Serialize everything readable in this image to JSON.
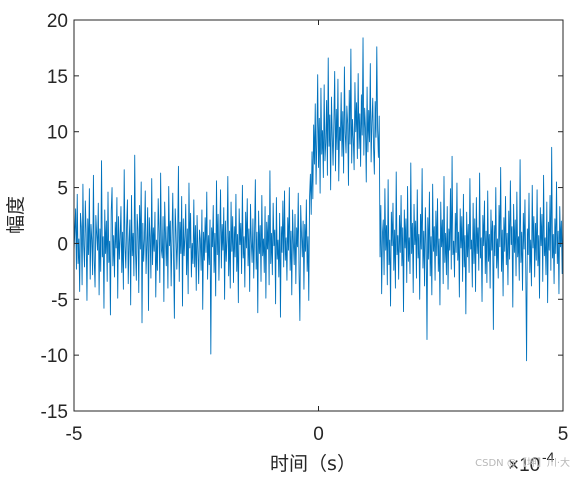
{
  "chart_data": {
    "type": "line",
    "title": "",
    "xlabel": "时间（s）",
    "ylabel": "幅度",
    "xlim": [
      -0.0005,
      0.0005
    ],
    "ylim": [
      -15,
      20
    ],
    "x_ticks": [
      -5,
      0,
      5
    ],
    "y_ticks": [
      -15,
      -10,
      -5,
      0,
      5,
      10,
      15,
      20
    ],
    "x_exponent_label": "×10",
    "x_exponent_power": "-4",
    "grid": false,
    "line_color": "#0072BD",
    "x_start": -0.0005,
    "x_end": 0.0005,
    "values": [
      -0.7,
      1.1,
      3.1,
      -2.3,
      4.4,
      -1.8,
      0.4,
      -4.3,
      2.7,
      1.5,
      -3.7,
      5.3,
      -0.2,
      -2.1,
      3.8,
      0.9,
      -5.1,
      2.2,
      -1.0,
      4.9,
      -3.2,
      1.7,
      0.3,
      -2.8,
      6.1,
      -1.5,
      -3.9,
      2.5,
      0.8,
      -0.6,
      3.6,
      -4.6,
      1.3,
      -2.5,
      7.4,
      -1.2,
      0.6,
      -5.8,
      3.0,
      -0.9,
      2.0,
      -3.4,
      4.6,
      -1.7,
      0.2,
      -6.4,
      2.9,
      5.0,
      -2.0,
      0.7,
      -3.0,
      1.9,
      -0.4,
      4.1,
      -4.9,
      2.4,
      -1.4,
      0.5,
      3.3,
      -2.6,
      1.0,
      -4.1,
      6.6,
      -0.3,
      -2.2,
      1.6,
      3.9,
      -3.6,
      0.1,
      2.1,
      -5.5,
      4.3,
      -1.1,
      0.9,
      -2.9,
      7.9,
      -0.8,
      -3.3,
      2.6,
      1.2,
      -4.4,
      3.4,
      -0.5,
      5.5,
      -7.1,
      1.8,
      -1.6,
      0.4,
      4.7,
      -2.7,
      -0.1,
      3.2,
      -6.0,
      2.3,
      0.6,
      -3.1,
      5.8,
      -1.9,
      1.4,
      -0.7,
      2.8,
      -4.8,
      0.3,
      -2.4,
      4.0,
      1.1,
      -3.5,
      6.3,
      -0.6,
      -1.3,
      2.4,
      -5.2,
      3.7,
      0.8,
      -2.0,
      1.5,
      -4.0,
      5.1,
      -0.2,
      2.0,
      -3.8,
      0.5,
      4.5,
      -1.4,
      -6.7,
      3.1,
      1.0,
      -2.3,
      0.2,
      6.9,
      -3.4,
      1.9,
      -0.9,
      4.2,
      -5.6,
      2.2,
      -1.1,
      0.6,
      3.5,
      -2.8,
      1.3,
      -4.5,
      5.4,
      -0.4,
      2.7,
      -3.0,
      0.0,
      -1.8,
      3.9,
      -2.1,
      1.6,
      -4.2,
      2.5,
      -0.5,
      -3.6,
      1.2,
      0.4,
      -2.4,
      3.0,
      -5.9,
      1.0,
      -1.5,
      2.3,
      -0.8,
      4.6,
      -3.2,
      0.7,
      -1.9,
      2.1,
      -9.9,
      1.4,
      -0.3,
      3.4,
      -2.6,
      0.9,
      -4.7,
      5.6,
      -1.0,
      2.6,
      -3.3,
      0.5,
      4.8,
      -2.2,
      1.7,
      -0.6,
      3.2,
      -5.0,
      2.0,
      -1.6,
      0.3,
      6.0,
      -2.9,
      1.1,
      -4.0,
      3.7,
      -0.7,
      2.4,
      -3.5,
      1.5,
      -1.2,
      4.4,
      -2.5,
      0.8,
      -5.3,
      3.1,
      -0.1,
      1.8,
      -2.7,
      5.2,
      -1.3,
      0.6,
      -3.9,
      2.8,
      -0.4,
      4.0,
      -2.0,
      1.3,
      -4.3,
      3.5,
      0.2,
      -1.7,
      2.2,
      -3.1,
      0.7,
      5.7,
      -2.3,
      1.0,
      -6.2,
      2.9,
      -0.9,
      1.6,
      -3.4,
      4.3,
      -1.1,
      0.4,
      -2.6,
      3.3,
      -4.9,
      1.9,
      -0.5,
      2.5,
      -3.7,
      6.5,
      -1.8,
      0.9,
      -2.8,
      3.6,
      -0.2,
      1.2,
      -5.4,
      4.1,
      -1.4,
      0.3,
      -3.0,
      2.7,
      -6.6,
      1.5,
      -0.8,
      3.8,
      -2.1,
      4.7,
      -1.5,
      0.5,
      -3.3,
      2.3,
      -0.6,
      5.0,
      -2.4,
      1.1,
      -4.6,
      3.0,
      0.0,
      -1.9,
      2.6,
      -3.6,
      1.4,
      -0.3,
      4.5,
      -2.7,
      -6.9,
      3.4,
      0.8,
      -1.2,
      2.0,
      -4.1,
      1.7,
      -0.7,
      3.9,
      -2.5,
      0.6,
      -5.1,
      4.2,
      6.2,
      2.6,
      8.2,
      4.0,
      10.6,
      7.1,
      12.5,
      5.3,
      9.4,
      15.1,
      6.8,
      11.2,
      4.5,
      13.9,
      8.0,
      10.1,
      5.9,
      14.2,
      7.4,
      9.0,
      12.8,
      6.1,
      16.6,
      8.7,
      11.5,
      4.8,
      13.1,
      9.6,
      7.0,
      10.9,
      15.4,
      6.5,
      12.0,
      8.4,
      14.7,
      5.6,
      10.4,
      9.2,
      13.5,
      7.8,
      11.8,
      6.3,
      15.8,
      9.9,
      8.1,
      12.3,
      10.7,
      5.2,
      13.7,
      8.9,
      17.4,
      7.2,
      11.1,
      9.4,
      6.6,
      14.4,
      10.0,
      12.6,
      7.6,
      15.2,
      8.5,
      11.6,
      6.9,
      13.3,
      9.7,
      18.4,
      7.9,
      12.1,
      10.3,
      5.5,
      14.0,
      8.2,
      11.9,
      9.1,
      16.1,
      7.3,
      10.8,
      13.0,
      8.6,
      6.2,
      12.7,
      9.5,
      17.6,
      10.2,
      7.7,
      11.4,
      -1.2,
      3.4,
      -4.5,
      0.9,
      2.1,
      -2.8,
      4.9,
      -0.6,
      1.6,
      -3.7,
      5.7,
      -1.9,
      0.3,
      -5.6,
      2.8,
      -0.2,
      3.6,
      -2.4,
      1.2,
      -4.0,
      6.4,
      -1.0,
      0.7,
      -3.2,
      2.5,
      -0.8,
      4.3,
      -2.0,
      1.4,
      -6.1,
      3.0,
      -0.4,
      2.2,
      -3.5,
      5.1,
      -1.6,
      0.5,
      -2.7,
      7.2,
      -0.9,
      1.8,
      -4.4,
      3.5,
      -0.1,
      2.0,
      -3.1,
      4.8,
      -1.3,
      0.8,
      -5.0,
      2.6,
      -0.5,
      6.7,
      -2.2,
      1.1,
      -3.8,
      3.2,
      0.0,
      -8.6,
      2.3,
      -1.4,
      4.6,
      -2.9,
      0.6,
      -4.6,
      5.3,
      -0.7,
      1.5,
      -3.3,
      2.9,
      -1.1,
      4.0,
      -2.5,
      0.4,
      -5.5,
      3.7,
      -0.3,
      2.1,
      -3.6,
      6.0,
      -1.7,
      0.9,
      -2.8,
      3.3,
      -4.1,
      1.3,
      -0.6,
      4.9,
      -2.3,
      7.8,
      -1.0,
      0.2,
      -3.0,
      2.7,
      -0.8,
      5.4,
      -1.5,
      1.0,
      -4.8,
      3.1,
      -0.4,
      2.4,
      -3.4,
      4.4,
      -2.1,
      0.7,
      -6.3,
      2.8,
      -1.2,
      1.7,
      -2.6,
      5.8,
      -0.5,
      0.3,
      -3.9,
      3.6,
      -1.8,
      2.2,
      -4.3,
      4.1,
      -0.9,
      1.4,
      -2.4,
      6.3,
      -1.3,
      0.5,
      -5.2,
      2.5,
      -0.2,
      3.8,
      -2.7,
      1.1,
      -3.5,
      4.7,
      -1.6,
      0.8,
      -4.0,
      3.0,
      -0.6,
      2.0,
      -7.7,
      1.6,
      -1.1,
      5.0,
      -2.2,
      0.4,
      -3.1,
      3.4,
      -0.3,
      6.8,
      -2.5,
      1.2,
      -4.7,
      2.3,
      -0.7,
      4.2,
      -1.9,
      0.9,
      -3.7,
      2.9,
      -1.4,
      5.6,
      -0.1,
      1.5,
      -5.7,
      3.5,
      -0.8,
      2.1,
      -2.9,
      4.6,
      -1.2,
      0.6,
      -3.3,
      7.5,
      -1.7,
      1.0,
      -4.2,
      2.7,
      -0.5,
      3.9,
      -2.3,
      -10.5,
      1.3,
      -1.0,
      4.5,
      -2.6,
      0.3,
      -3.8,
      5.2,
      -0.4,
      2.4,
      -3.0,
      1.8,
      -1.5,
      4.8,
      -2.0,
      0.7,
      -4.9,
      3.2,
      -0.2,
      2.6,
      -3.4,
      6.1,
      -1.1,
      0.5,
      -2.8,
      3.7,
      -5.3,
      1.9,
      -0.6,
      4.3,
      -2.4,
      8.6,
      -1.3,
      0.8,
      -3.6,
      2.2,
      -0.9,
      5.5,
      -1.8,
      1.1,
      -4.5,
      3.3,
      -0.3,
      2.0,
      -2.7,
      3.1
    ]
  },
  "watermark": "CSDN @【坤】川·大"
}
